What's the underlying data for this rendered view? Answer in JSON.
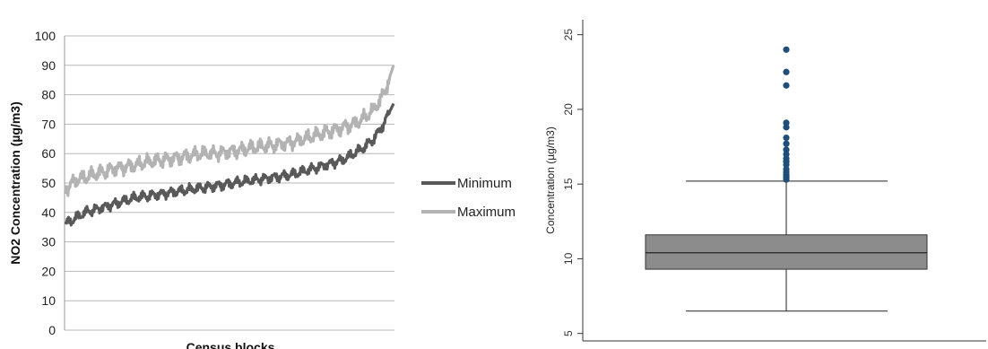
{
  "chart_data": [
    {
      "type": "line",
      "ylabel": "NO2 Concentration (µg/m3)",
      "xlabel": "Census blocks",
      "ylim": [
        0,
        100
      ],
      "yticks": [
        0,
        10,
        20,
        30,
        40,
        50,
        60,
        70,
        80,
        90,
        100
      ],
      "grid": true,
      "legend": "right",
      "series": [
        {
          "name": "Minimum",
          "color": "#595959",
          "values": [
            36,
            38,
            40,
            41,
            42,
            43,
            44,
            45,
            45.5,
            46,
            46.5,
            47,
            47.5,
            48,
            48.5,
            49,
            49.5,
            50,
            50.5,
            51,
            51.5,
            52,
            52.5,
            53,
            54,
            55,
            56,
            57,
            58,
            60,
            62,
            65,
            70,
            77
          ]
        },
        {
          "name": "Maximum",
          "color": "#b3b3b3",
          "values": [
            48,
            51,
            52,
            53,
            54,
            55,
            55.5,
            56,
            57,
            57.5,
            58,
            58.5,
            59,
            59.5,
            60,
            60,
            60.5,
            61,
            61.5,
            62,
            62.5,
            63,
            63.5,
            64,
            65,
            66,
            67,
            68,
            69,
            70,
            72,
            75,
            80,
            90
          ]
        }
      ]
    },
    {
      "type": "box",
      "ylabel": "Concentration (µg/m3)",
      "ylim": [
        4.5,
        26
      ],
      "yticks": [
        5,
        10,
        15,
        20,
        25
      ],
      "grid": false,
      "box": {
        "whisker_low": 6.5,
        "q1": 9.3,
        "median": 10.4,
        "q3": 11.6,
        "whisker_high": 15.2,
        "color": "#8c8c8c",
        "outlier_color": "#1f4e79",
        "outliers": [
          15.3,
          15.45,
          15.6,
          15.8,
          16.0,
          16.3,
          16.5,
          16.7,
          17.0,
          17.3,
          17.7,
          18.1,
          18.8,
          19.1,
          21.6,
          22.5,
          24.0
        ]
      }
    }
  ]
}
